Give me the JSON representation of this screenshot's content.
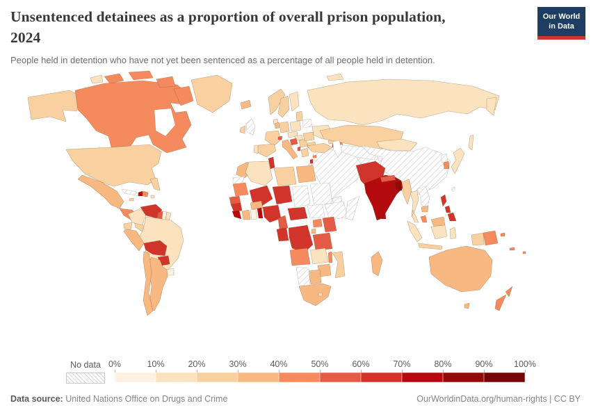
{
  "header": {
    "title_lines": [
      "Unsentenced detainees as a proportion of overall prison population,",
      "2024"
    ],
    "subtitle": "People held in detention who have not yet been sentenced as a percentage of all people held in detention.",
    "logo": {
      "line1": "Our World",
      "line2": "in Data",
      "bg_color": "#1d3d63",
      "accent_color": "#d0342c"
    }
  },
  "legend": {
    "no_data_label": "No data",
    "tick_labels": [
      "0%",
      "10%",
      "20%",
      "30%",
      "40%",
      "50%",
      "60%",
      "70%",
      "80%",
      "90%",
      "100%"
    ],
    "colors": [
      "#fdf2e1",
      "#fbe3bf",
      "#f9d1a0",
      "#f7b882",
      "#f58a5e",
      "#e35c46",
      "#d1342b",
      "#b30b0e",
      "#920a0a",
      "#740406"
    ]
  },
  "footer": {
    "source_label": "Data source:",
    "source_value": " United Nations Office on Drugs and Crime",
    "attribution": "OurWorldinData.org/human-rights | CC BY"
  },
  "chart_data": {
    "type": "choropleth_map",
    "title": "Unsentenced detainees as a proportion of overall prison population, 2024",
    "unit": "% of all people held in detention",
    "legend_bins": [
      "0-10%",
      "10-20%",
      "20-30%",
      "30-40%",
      "40-50%",
      "50-60%",
      "60-70%",
      "70-80%",
      "80-90%",
      "90-100%"
    ],
    "no_data_label": "No data",
    "region_bins": {
      "alaska": 2,
      "canada": 4,
      "canada-islands-1": 4,
      "canada-islands-2": 4,
      "canada-islands-3": 4,
      "canada-baffin": 4,
      "arctic-island-pale": 1,
      "greenland": 2,
      "usa": 2,
      "florida": 2,
      "mexico": 3,
      "central-america-north": 4,
      "central-america-south": 2,
      "cuba": "nd",
      "jamaica": 2,
      "haiti": 7,
      "dominican-republic": 4,
      "puerto-rico": 1,
      "trinidad": 7,
      "colombia": 1,
      "venezuela": 6,
      "guyana": 5,
      "suriname": 0,
      "french-guiana": 1,
      "ecuador": 2,
      "peru": 3,
      "brazil": 1,
      "bolivia": 6,
      "paraguay": 6,
      "uruguay": 0,
      "argentina": 3,
      "chile": 3,
      "iceland": 3,
      "uk": "nd",
      "ireland": 2,
      "norway": 2,
      "sweden": 2,
      "finland": 1,
      "denmark": 1,
      "baltics": 2,
      "belarus": "nd",
      "poland": 1,
      "germany": 2,
      "benelux": 3,
      "france": 2,
      "switzerland": 5,
      "austria-czech": 1,
      "hungary": 1,
      "spain": 2,
      "portugal": 1,
      "italy": 3,
      "croatia": 5,
      "serbia-region": 2,
      "albania": 5,
      "greece": 2,
      "romania": 2,
      "bulgaria": 2,
      "ukraine": 1,
      "russia": 1,
      "russia-arctic": 1,
      "turkey": 2,
      "georgia": 2,
      "armenia": 6,
      "azerbaijan": 4,
      "cyprus": 4,
      "lebanon": 6,
      "israel": 0,
      "middle-east": "nd",
      "iran": "nd",
      "afghanistan": "nd",
      "kazakhstan": 2,
      "central-asia": "nd",
      "mongolia": 1,
      "china": "nd",
      "taiwan": "nd",
      "north-korea": "nd",
      "south-korea": 4,
      "japan": 1,
      "pakistan": 6,
      "india": 7,
      "nepal": 5,
      "bangladesh": 8,
      "sri-lanka": 7,
      "myanmar": 2,
      "thailand": 1,
      "laos-vietnam": "nd",
      "cambodia": 3,
      "malaysia": 4,
      "borneo-malaysia": 3,
      "indonesia-sumatra": 1,
      "indonesia-kalimantan": 1,
      "indonesia-java": 2,
      "indonesia-sulawesi": 1,
      "indonesia-westpapua": 2,
      "lesser-sunda": 1,
      "philippines": 6,
      "papua-new-guinea": 4,
      "new-caledonia": 4,
      "fiji": 4,
      "morocco": 3,
      "western-sahara": "nd",
      "mauritania": 4,
      "algeria": 1,
      "tunisia": 6,
      "libya": 2,
      "egypt": 3,
      "mali": 6,
      "niger": 6,
      "chad": "nd",
      "sudan": "nd",
      "eritrea-djibouti": "nd",
      "senegal": 5,
      "guinea": 6,
      "sierra-liberia": 7,
      "ivory-coast": 3,
      "ghana": 0,
      "burkina-faso": 3,
      "togo-benin": 7,
      "nigeria": 6,
      "cameroon": 5,
      "central-african-republic": 6,
      "south-sudan": "nd",
      "ethiopia": "nd",
      "somalia": "nd",
      "uganda": 4,
      "kenya": 5,
      "gabon-congo": 6,
      "drc": 6,
      "rwanda-burundi": 3,
      "tanzania": 5,
      "angola": 4,
      "zambia": 1,
      "malawi": 4,
      "mozambique": 2,
      "zimbabwe": 3,
      "botswana": 3,
      "namibia": "nd",
      "south-africa": 3,
      "lesotho": 1,
      "madagascar": 3,
      "australia": 3,
      "tasmania": 3,
      "new-zealand": 4
    }
  }
}
